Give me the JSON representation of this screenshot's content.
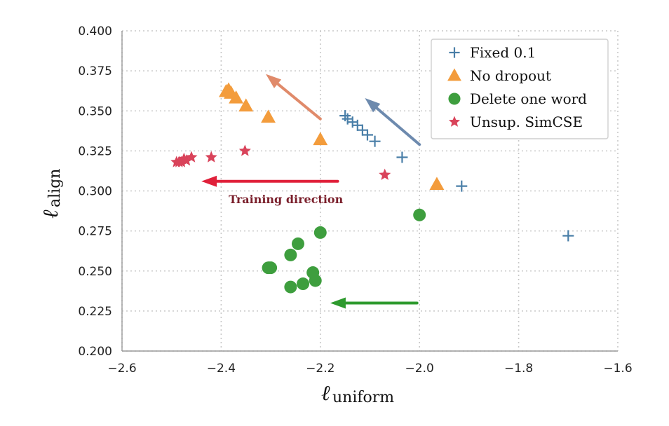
{
  "chart_data": {
    "type": "scatter",
    "xlabel_main": "ℓ",
    "xlabel_sub": "uniform",
    "ylabel_main": "ℓ",
    "ylabel_sub": "align",
    "xlim": [
      -2.6,
      -1.6
    ],
    "ylim": [
      0.2,
      0.4
    ],
    "xticks": [
      -2.6,
      -2.4,
      -2.2,
      -2.0,
      -1.8,
      -1.6
    ],
    "xtick_labels": [
      "−2.6",
      "−2.4",
      "−2.2",
      "−2.0",
      "−1.8",
      "−1.6"
    ],
    "yticks": [
      0.2,
      0.225,
      0.25,
      0.275,
      0.3,
      0.325,
      0.35,
      0.375,
      0.4
    ],
    "ytick_labels": [
      "0.200",
      "0.225",
      "0.250",
      "0.275",
      "0.300",
      "0.325",
      "0.350",
      "0.375",
      "0.400"
    ],
    "grid": true,
    "legend_position": "top-right",
    "series": [
      {
        "name": "Fixed 0.1",
        "marker": "plus",
        "color": "#4a7fa8",
        "points": [
          [
            -1.7,
            0.272
          ],
          [
            -1.915,
            0.303
          ],
          [
            -2.035,
            0.321
          ],
          [
            -2.09,
            0.331
          ],
          [
            -2.105,
            0.335
          ],
          [
            -2.115,
            0.338
          ],
          [
            -2.125,
            0.341
          ],
          [
            -2.135,
            0.343
          ],
          [
            -2.145,
            0.345
          ],
          [
            -2.15,
            0.347
          ]
        ]
      },
      {
        "name": "No dropout",
        "marker": "triangle",
        "color": "#f39c3c",
        "points": [
          [
            -1.965,
            0.304
          ],
          [
            -2.2,
            0.332
          ],
          [
            -2.305,
            0.346
          ],
          [
            -2.35,
            0.353
          ],
          [
            -2.37,
            0.358
          ],
          [
            -2.38,
            0.361
          ],
          [
            -2.385,
            0.363
          ],
          [
            -2.39,
            0.362
          ]
        ]
      },
      {
        "name": "Delete one word",
        "marker": "circle",
        "color": "#3e9e3e",
        "points": [
          [
            -2.0,
            0.285
          ],
          [
            -2.2,
            0.274
          ],
          [
            -2.245,
            0.267
          ],
          [
            -2.26,
            0.26
          ],
          [
            -2.3,
            0.252
          ],
          [
            -2.305,
            0.252
          ],
          [
            -2.215,
            0.249
          ],
          [
            -2.21,
            0.244
          ],
          [
            -2.235,
            0.242
          ],
          [
            -2.26,
            0.24
          ]
        ]
      },
      {
        "name": "Unsup. SimCSE",
        "marker": "star",
        "color": "#d9435a",
        "points": [
          [
            -2.07,
            0.31
          ],
          [
            -2.352,
            0.325
          ],
          [
            -2.42,
            0.321
          ],
          [
            -2.46,
            0.321
          ],
          [
            -2.47,
            0.319
          ],
          [
            -2.475,
            0.32
          ],
          [
            -2.48,
            0.318
          ],
          [
            -2.485,
            0.318
          ],
          [
            -2.49,
            0.318
          ]
        ]
      }
    ],
    "arrows": [
      {
        "color": "#e08a6a",
        "from": [
          -2.2,
          0.345
        ],
        "to": [
          -2.31,
          0.373
        ]
      },
      {
        "color": "#6d8aae",
        "from": [
          -2.0,
          0.329
        ],
        "to": [
          -2.11,
          0.358
        ]
      },
      {
        "color": "#e0203a",
        "from": [
          -2.165,
          0.306
        ],
        "to": [
          -2.44,
          0.306
        ]
      },
      {
        "color": "#2e9a2e",
        "from": [
          -2.005,
          0.23
        ],
        "to": [
          -2.18,
          0.23
        ]
      }
    ],
    "annotation": {
      "text": "Training direction",
      "x": -2.3,
      "y": 0.295
    }
  }
}
